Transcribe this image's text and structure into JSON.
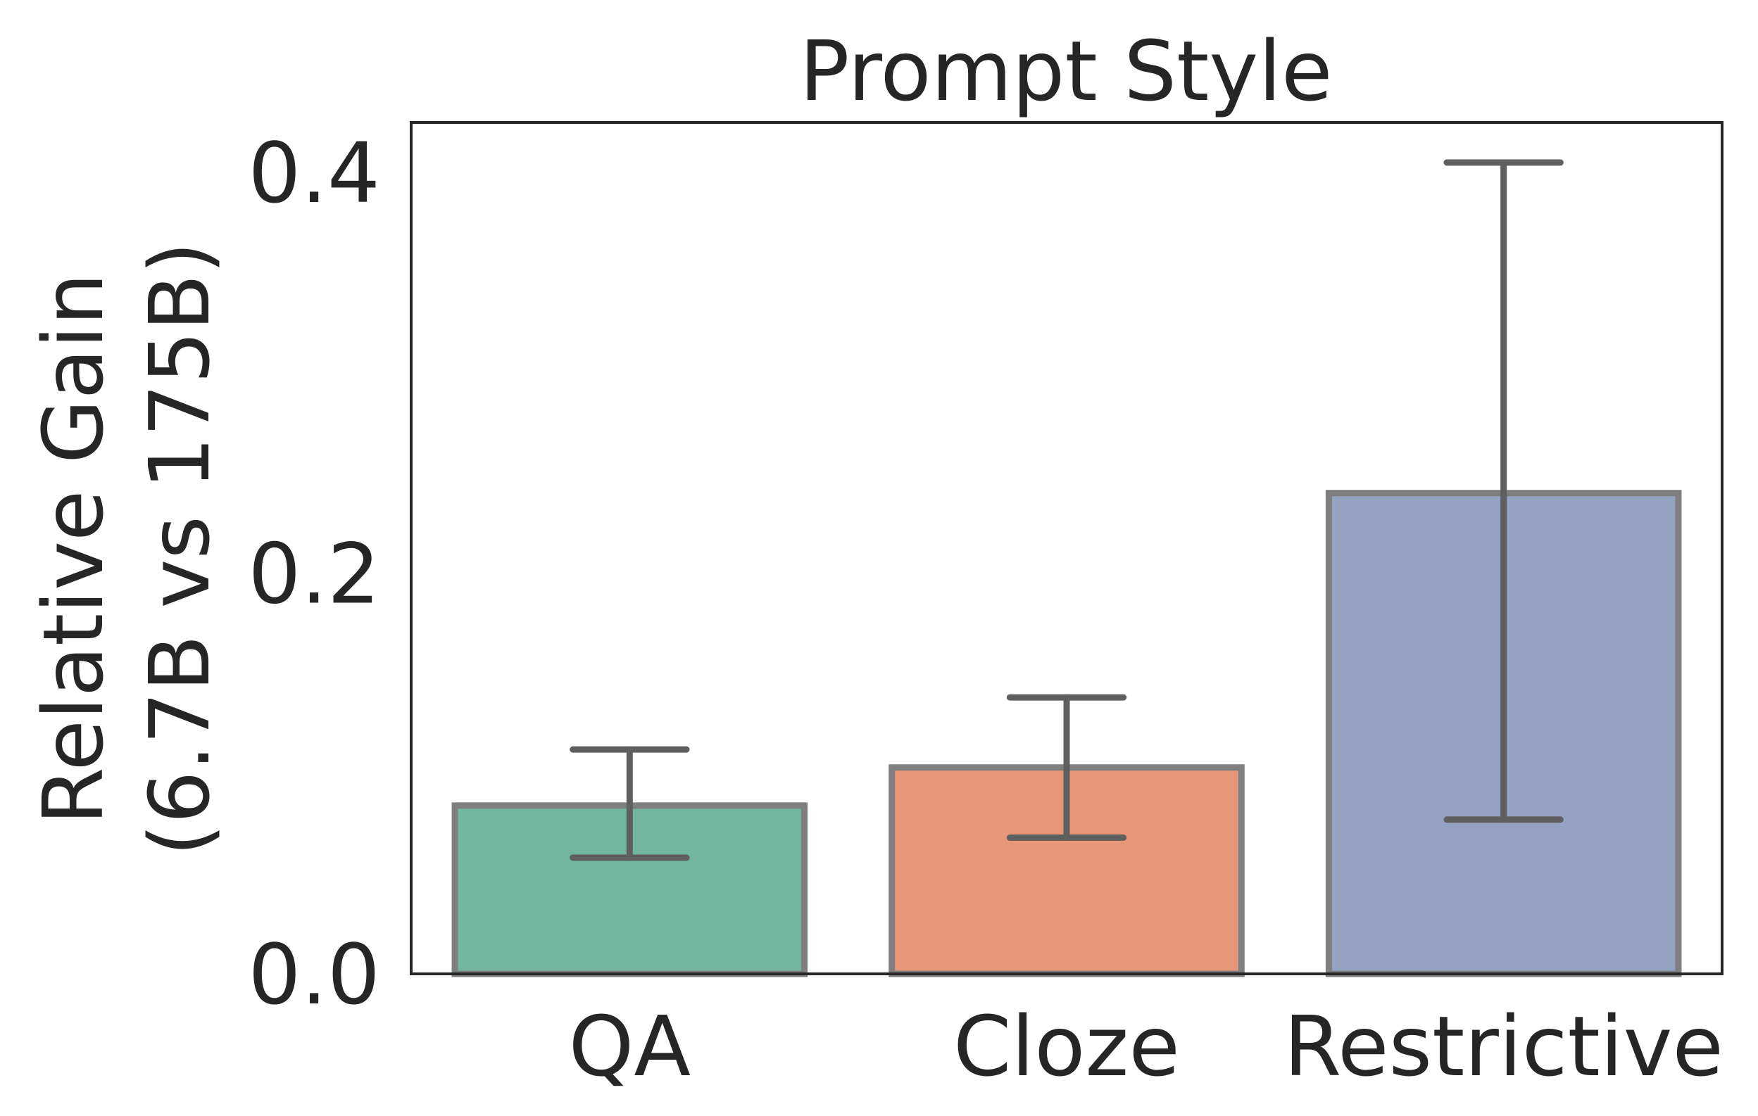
{
  "chart_data": {
    "type": "bar",
    "title": "Prompt Style",
    "ylabel_lines": [
      "Relative Gain",
      "(6.7B vs 175B)"
    ],
    "xlabel": "",
    "categories": [
      "QA",
      "Cloze",
      "Restrictive"
    ],
    "values": [
      0.084,
      0.103,
      0.24
    ],
    "error_low": [
      0.058,
      0.068,
      0.077
    ],
    "error_high": [
      0.112,
      0.138,
      0.405
    ],
    "ylim": [
      0,
      0.425
    ],
    "yticks": [
      0.0,
      0.2,
      0.4
    ],
    "ytick_labels": [
      "0.0",
      "0.2",
      "0.4"
    ],
    "colors": [
      "#72b6a0",
      "#e8967a",
      "#95a3c2"
    ],
    "edge_color": "#7f7f7f",
    "error_color": "#5f5f5f",
    "grid": false,
    "legend": "none"
  }
}
